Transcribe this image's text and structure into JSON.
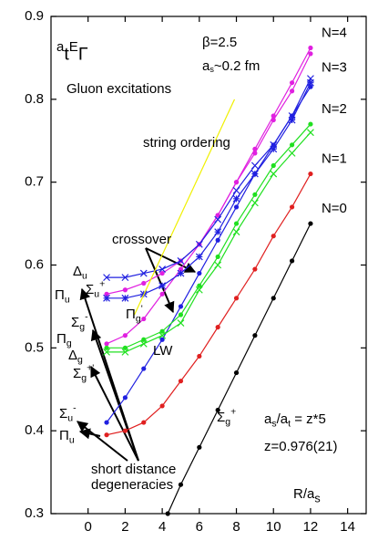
{
  "chart_data": {
    "type": "line",
    "title": [
      {
        "base": "a",
        "sub": "t"
      },
      {
        "base": "E",
        "sub": "Γ"
      }
    ],
    "subtitle": "Gluon excitations",
    "x_label": [
      {
        "base": "R/a",
        "sub": "s"
      }
    ],
    "xlim": [
      -2,
      15
    ],
    "xticks": [
      0,
      2,
      4,
      6,
      8,
      10,
      12,
      14
    ],
    "ylim": [
      0.3,
      0.9
    ],
    "yticks": [
      0.3,
      0.4,
      0.5,
      0.6,
      0.7,
      0.8,
      0.9
    ],
    "annotations": {
      "beta": [
        {
          "base": "β=2.5"
        }
      ],
      "spacing": [
        {
          "base": "a",
          "sub": "s"
        },
        {
          "base": "~0.2 fm"
        }
      ],
      "string": [
        {
          "base": "string ordering"
        }
      ],
      "crossover": [
        {
          "base": "crossover"
        }
      ],
      "lw": [
        {
          "base": "LW"
        }
      ],
      "ratio": [
        {
          "base": "a",
          "sub": "s"
        },
        {
          "base": "/a",
          "sub": "t"
        },
        {
          "base": " = z*5"
        }
      ],
      "z": [
        {
          "base": "z=0.976(21)"
        }
      ],
      "short1": [
        {
          "base": "short distance"
        }
      ],
      "short2": [
        {
          "base": "degeneracies"
        }
      ]
    },
    "states": [
      [
        {
          "base": "Δ",
          "sub": "u"
        }
      ],
      [
        {
          "base": "Π",
          "sub": "u"
        }
      ],
      [
        {
          "base": "Σ",
          "sub": "u",
          "sup": "+"
        }
      ],
      [
        {
          "base": "Π",
          "sub": "g",
          "sup": "'"
        }
      ],
      [
        {
          "base": "Σ",
          "sub": "g",
          "sup": "-"
        }
      ],
      [
        {
          "base": "Π",
          "sub": "g"
        }
      ],
      [
        {
          "base": "Δ",
          "sub": "g"
        }
      ],
      [
        {
          "base": "Σ",
          "sub": "g",
          "sup": "+'"
        }
      ],
      [
        {
          "base": "Σ",
          "sub": "u",
          "sup": "-"
        }
      ],
      [
        {
          "base": "Π",
          "sub": "u"
        }
      ],
      [
        {
          "base": "Σ",
          "sub": "g",
          "sup": "+"
        }
      ]
    ],
    "series": [
      {
        "name": "N=4",
        "color": "#e020e0",
        "marker": "dot",
        "x": [
          1,
          2,
          3,
          4,
          5,
          6,
          7,
          8,
          9,
          10,
          11,
          12
        ],
        "values": [
          0.505,
          0.515,
          0.535,
          0.565,
          0.595,
          0.625,
          0.66,
          0.7,
          0.74,
          0.78,
          0.82,
          0.862
        ]
      },
      {
        "color": "#e020e0",
        "marker": "dot",
        "x": [
          1,
          2,
          3,
          4,
          5,
          6,
          7,
          8,
          9,
          10,
          11,
          12
        ],
        "values": [
          0.565,
          0.57,
          0.578,
          0.59,
          0.605,
          0.625,
          0.66,
          0.7,
          0.735,
          0.775,
          0.81,
          0.855
        ]
      },
      {
        "name": "N=3",
        "color": "#2020e0",
        "marker": "star",
        "x": [
          1,
          2,
          3,
          4,
          5,
          6,
          7,
          8,
          9,
          10,
          11,
          12
        ],
        "values": [
          0.56,
          0.56,
          0.565,
          0.575,
          0.59,
          0.61,
          0.64,
          0.68,
          0.71,
          0.74,
          0.775,
          0.82
        ]
      },
      {
        "color": "#2020e0",
        "marker": "cross",
        "x": [
          1,
          2,
          3,
          4,
          5,
          6,
          7,
          8,
          9,
          10,
          11,
          12
        ],
        "values": [
          0.585,
          0.585,
          0.59,
          0.595,
          0.605,
          0.625,
          0.655,
          0.69,
          0.72,
          0.745,
          0.78,
          0.825
        ]
      },
      {
        "color": "#2020e0",
        "marker": "dot",
        "x": [
          1,
          2,
          3,
          4,
          5,
          6,
          7,
          8,
          9,
          10,
          11,
          12
        ],
        "values": [
          0.41,
          0.44,
          0.475,
          0.51,
          0.55,
          0.59,
          0.63,
          0.67,
          0.71,
          0.745,
          0.78,
          0.815
        ]
      },
      {
        "name": "N=2",
        "color": "#20e020",
        "marker": "dot",
        "x": [
          1,
          2,
          3,
          4,
          5,
          6,
          7,
          8,
          9,
          10,
          11,
          12
        ],
        "values": [
          0.5,
          0.5,
          0.51,
          0.52,
          0.54,
          0.575,
          0.61,
          0.65,
          0.685,
          0.72,
          0.745,
          0.77
        ]
      },
      {
        "color": "#20e020",
        "marker": "cross",
        "x": [
          1,
          2,
          3,
          4,
          5,
          6,
          7,
          8,
          9,
          10,
          11,
          12
        ],
        "values": [
          0.495,
          0.495,
          0.505,
          0.515,
          0.53,
          0.57,
          0.6,
          0.64,
          0.675,
          0.71,
          0.735,
          0.76
        ]
      },
      {
        "name": "N=1",
        "color": "#e02020",
        "marker": "dot",
        "x": [
          1,
          2,
          3,
          4,
          5,
          6,
          7,
          8,
          9,
          10,
          11,
          12
        ],
        "values": [
          0.395,
          0.4,
          0.41,
          0.43,
          0.46,
          0.49,
          0.525,
          0.56,
          0.595,
          0.635,
          0.67,
          0.71
        ]
      },
      {
        "name": "N=0",
        "color": "#000000",
        "marker": "dot",
        "x": [
          4.3,
          5,
          6,
          7,
          8,
          9,
          10,
          11,
          12
        ],
        "values": [
          0.3,
          0.335,
          0.38,
          0.425,
          0.47,
          0.515,
          0.56,
          0.605,
          0.65
        ]
      },
      {
        "color": "#f0f000",
        "marker": "none",
        "x": [
          2.5,
          7.9
        ],
        "values": [
          0.54,
          0.8
        ]
      }
    ]
  }
}
